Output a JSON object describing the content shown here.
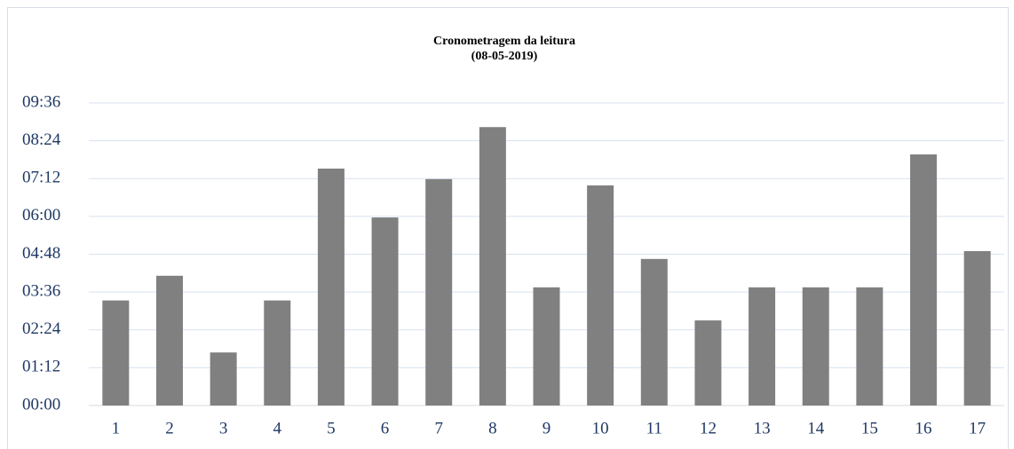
{
  "chart_data": {
    "type": "bar",
    "title": "Cronometragem da leitura",
    "subtitle": "(08-05-2019)",
    "categories": [
      "1",
      "2",
      "3",
      "4",
      "5",
      "6",
      "7",
      "8",
      "9",
      "10",
      "11",
      "12",
      "13",
      "14",
      "15",
      "16",
      "17"
    ],
    "values": [
      200,
      247,
      101,
      200,
      451,
      358,
      431,
      530,
      225,
      419,
      279,
      162,
      225,
      225,
      225,
      478,
      294
    ],
    "color": "#808080",
    "ylim": [
      0,
      576
    ],
    "yticks": [
      {
        "value": 0,
        "label": "00:00"
      },
      {
        "value": 72,
        "label": "01:12"
      },
      {
        "value": 144,
        "label": "02:24"
      },
      {
        "value": 216,
        "label": "03:36"
      },
      {
        "value": 288,
        "label": "04:48"
      },
      {
        "value": 360,
        "label": "06:00"
      },
      {
        "value": 432,
        "label": "07:12"
      },
      {
        "value": 504,
        "label": "08:24"
      },
      {
        "value": 576,
        "label": "09:36"
      }
    ],
    "grid": true
  }
}
